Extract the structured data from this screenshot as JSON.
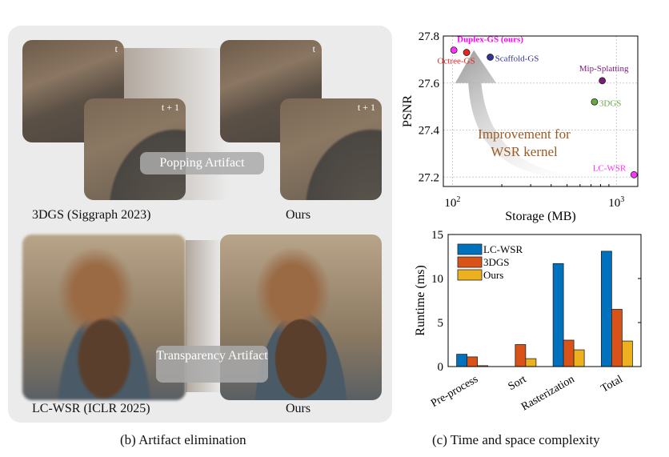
{
  "panel_b": {
    "top": {
      "frame_t": "t",
      "frame_t1": "t + 1",
      "artifact": "Popping Artifact",
      "left_caption": "3DGS (Siggraph 2023)",
      "right_caption": "Ours"
    },
    "bottom": {
      "artifact": "Transparency Artifact",
      "left_caption": "LC-WSR (ICLR 2025)",
      "right_caption": "Ours"
    },
    "caption": "(b) Artifact elimination"
  },
  "panel_c_caption": "(c) Time and space complexity",
  "chart_data": [
    {
      "type": "scatter",
      "xlabel": "Storage (MB)",
      "ylabel": "PSNR",
      "xscale": "log",
      "xlim": [
        88,
        1350
      ],
      "ylim": [
        27.16,
        27.8
      ],
      "xticks": [
        "10^2",
        "10^3"
      ],
      "yticks": [
        27.2,
        27.4,
        27.6,
        27.8
      ],
      "grid": true,
      "annotation": "Improvement for WSR kernel",
      "points": [
        {
          "name": "Duplex-GS (ours)",
          "x": 102,
          "y": 27.74,
          "color": "#ff33ff",
          "label_color": "#ff00ff"
        },
        {
          "name": "Octree-GS",
          "x": 122,
          "y": 27.73,
          "color": "#ee2222",
          "label_color": "#ee2222"
        },
        {
          "name": "Scaffold-GS",
          "x": 170,
          "y": 27.71,
          "color": "#333399",
          "label_color": "#333399"
        },
        {
          "name": "Mip-Splatting",
          "x": 820,
          "y": 27.61,
          "color": "#7a1a7a",
          "label_color": "#7a1a7a"
        },
        {
          "name": "3DGS",
          "x": 735,
          "y": 27.52,
          "color": "#66aa44",
          "label_color": "#66aa44"
        },
        {
          "name": "LC-WSR",
          "x": 1280,
          "y": 27.21,
          "color": "#ff33ff",
          "label_color": "#ff33ff"
        }
      ]
    },
    {
      "type": "bar",
      "ylabel": "Runtime (ms)",
      "ylim": [
        0,
        15
      ],
      "yticks": [
        0,
        5,
        10,
        15
      ],
      "categories": [
        "Pre-process",
        "Sort",
        "Rasterization",
        "Total"
      ],
      "legend": "top-left",
      "series": [
        {
          "name": "LC-WSR",
          "color": "#0072bd",
          "values": [
            1.4,
            0,
            11.7,
            13.1
          ]
        },
        {
          "name": "3DGS",
          "color": "#d95319",
          "values": [
            1.1,
            2.5,
            3.0,
            6.5
          ]
        },
        {
          "name": "Ours",
          "color": "#edb120",
          "values": [
            0.1,
            0.9,
            1.9,
            2.9
          ]
        }
      ]
    }
  ]
}
